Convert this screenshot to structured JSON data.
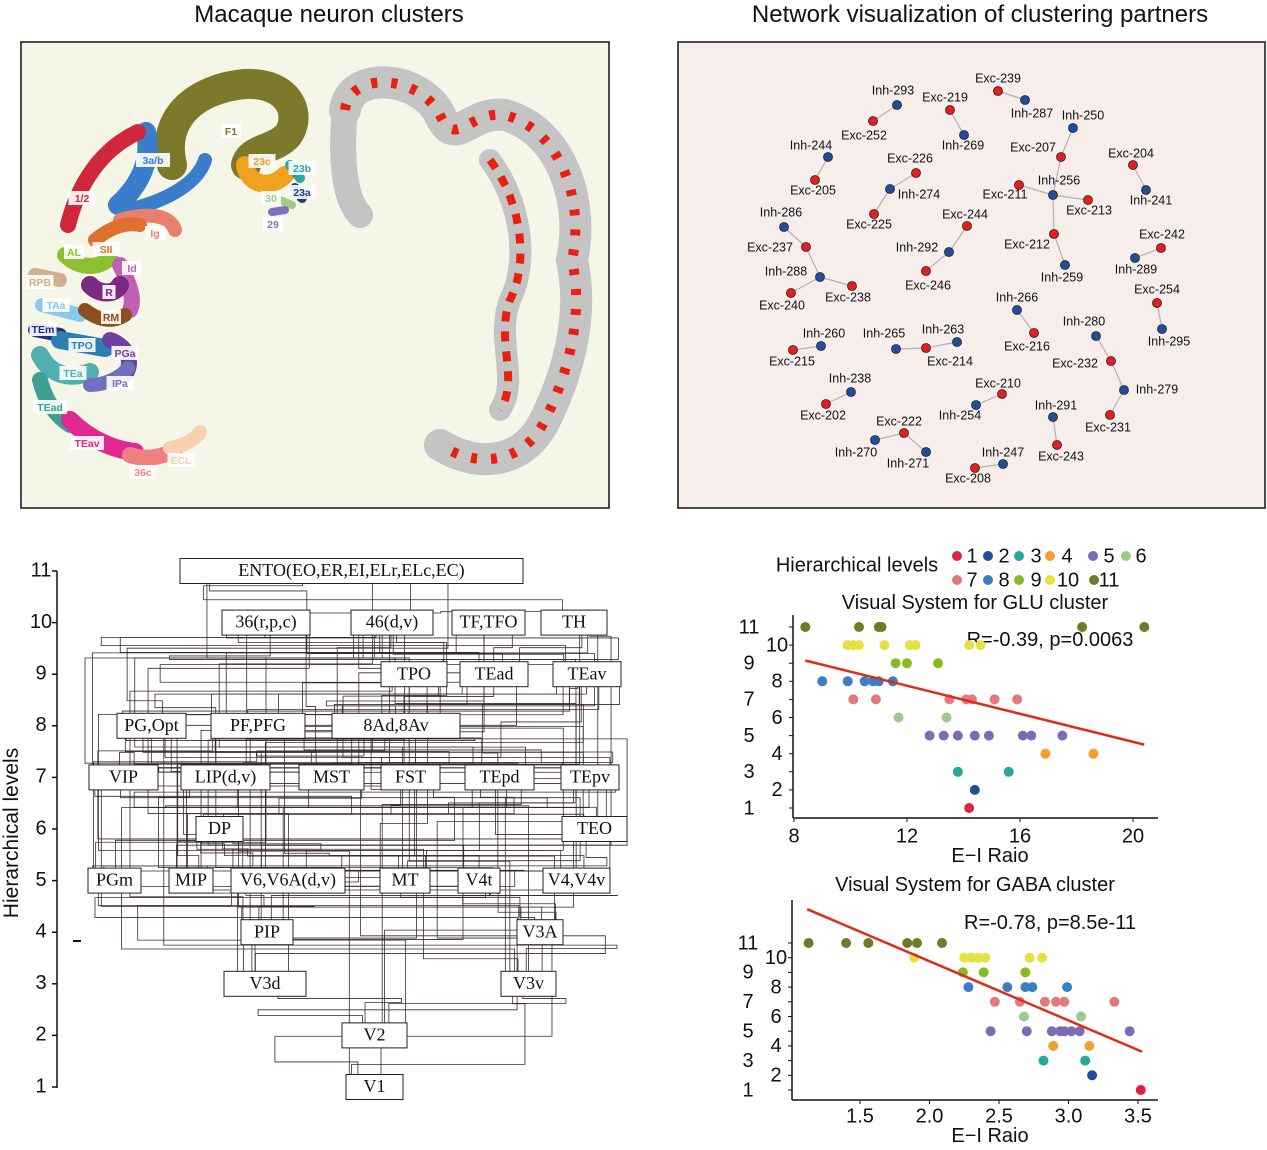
{
  "titles": {
    "brain": "Macaque neuron clusters",
    "network": "Network visualization of clustering partners"
  },
  "brain": {
    "background": "#f5f5e8",
    "hemisphere_color": "#c4c4c4",
    "highlight_color": "#e82010",
    "regions": [
      {
        "label": "F1",
        "color": "#7a7a2a"
      },
      {
        "label": "3a/b",
        "color": "#3a7ecb"
      },
      {
        "label": "1/2",
        "color": "#d0283a"
      },
      {
        "label": "23c",
        "color": "#f2a020"
      },
      {
        "label": "23b",
        "color": "#2aa7a0"
      },
      {
        "label": "23a",
        "color": "#1f3e8a"
      },
      {
        "label": "30",
        "color": "#9ccc88"
      },
      {
        "label": "29",
        "color": "#8070c0"
      },
      {
        "label": "Ig",
        "color": "#e88070"
      },
      {
        "label": "SII",
        "color": "#e07030"
      },
      {
        "label": "AL",
        "color": "#8cc030"
      },
      {
        "label": "Id",
        "color": "#c060b0"
      },
      {
        "label": "RPB",
        "color": "#d0b090"
      },
      {
        "label": "R",
        "color": "#7a2a80"
      },
      {
        "label": "TAa",
        "color": "#8cc8e8"
      },
      {
        "label": "RM",
        "color": "#8a5020"
      },
      {
        "label": "TEm",
        "color": "#203080"
      },
      {
        "label": "TPO",
        "color": "#2a80b0"
      },
      {
        "label": "PGa",
        "color": "#7040a0"
      },
      {
        "label": "TEa",
        "color": "#50b0b0"
      },
      {
        "label": "IPa",
        "color": "#7070c0"
      },
      {
        "label": "TEad",
        "color": "#40a090"
      },
      {
        "label": "TEav",
        "color": "#e02890"
      },
      {
        "label": "36c",
        "color": "#f08080"
      },
      {
        "label": "ECL",
        "color": "#f8d0b0"
      }
    ]
  },
  "network": {
    "background": "#f7eeec",
    "exc_color": "#e3201b",
    "inh_color": "#1f4ea0",
    "nodes": [
      "Exc-239",
      "Inh-287",
      "Inh-293",
      "Exc-252",
      "Exc-219",
      "Inh-269",
      "Inh-250",
      "Exc-207",
      "Inh-244",
      "Exc-205",
      "Exc-226",
      "Inh-274",
      "Exc-225",
      "Exc-204",
      "Inh-241",
      "Exc-211",
      "Inh-256",
      "Exc-213",
      "Exc-212",
      "Inh-259",
      "Inh-286",
      "Exc-237",
      "Inh-288",
      "Exc-238",
      "Exc-240",
      "Exc-244",
      "Inh-292",
      "Exc-246",
      "Exc-242",
      "Inh-289",
      "Exc-254",
      "Inh-295",
      "Inh-266",
      "Exc-216",
      "Inh-280",
      "Exc-232",
      "Inh-279",
      "Exc-231",
      "Inh-260",
      "Exc-215",
      "Inh-265",
      "Exc-214",
      "Inh-263",
      "Inh-238",
      "Exc-202",
      "Exc-210",
      "Inh-254",
      "Inh-291",
      "Exc-243",
      "Exc-222",
      "Inh-270",
      "Inh-271",
      "Inh-247",
      "Exc-208"
    ],
    "edges": [
      [
        "Exc-239",
        "Inh-287"
      ],
      [
        "Inh-293",
        "Exc-252"
      ],
      [
        "Exc-219",
        "Inh-269"
      ],
      [
        "Inh-250",
        "Exc-207"
      ],
      [
        "Exc-207",
        "Inh-256"
      ],
      [
        "Exc-211",
        "Inh-256"
      ],
      [
        "Inh-256",
        "Exc-213"
      ],
      [
        "Inh-256",
        "Exc-212"
      ],
      [
        "Exc-212",
        "Inh-259"
      ],
      [
        "Inh-244",
        "Exc-205"
      ],
      [
        "Exc-226",
        "Inh-274"
      ],
      [
        "Inh-274",
        "Exc-225"
      ],
      [
        "Exc-204",
        "Inh-241"
      ],
      [
        "Inh-286",
        "Exc-237"
      ],
      [
        "Exc-237",
        "Inh-288"
      ],
      [
        "Inh-288",
        "Exc-238"
      ],
      [
        "Inh-288",
        "Exc-240"
      ],
      [
        "Exc-244",
        "Inh-292"
      ],
      [
        "Inh-292",
        "Exc-246"
      ],
      [
        "Exc-242",
        "Inh-289"
      ],
      [
        "Exc-254",
        "Inh-295"
      ],
      [
        "Inh-266",
        "Exc-216"
      ],
      [
        "Inh-280",
        "Exc-232"
      ],
      [
        "Exc-232",
        "Inh-279"
      ],
      [
        "Inh-279",
        "Exc-231"
      ],
      [
        "Inh-260",
        "Exc-215"
      ],
      [
        "Inh-265",
        "Exc-214"
      ],
      [
        "Exc-214",
        "Inh-263"
      ],
      [
        "Inh-238",
        "Exc-202"
      ],
      [
        "Exc-210",
        "Inh-254"
      ],
      [
        "Inh-291",
        "Exc-243"
      ],
      [
        "Exc-222",
        "Inh-270"
      ],
      [
        "Exc-222",
        "Inh-271"
      ],
      [
        "Inh-247",
        "Exc-208"
      ]
    ]
  },
  "hierarchy": {
    "ylabel": "Hierarchical levels",
    "yticks": [
      1,
      2,
      3,
      4,
      5,
      6,
      7,
      8,
      9,
      10,
      11
    ],
    "areas": [
      {
        "label": "ENTO(EO,ER,EI,ELr,ELc,EC)",
        "level": 11
      },
      {
        "label": "36(r,p,c)",
        "level": 10
      },
      {
        "label": "46(d,v)",
        "level": 10
      },
      {
        "label": "TF,TFO",
        "level": 10
      },
      {
        "label": "TH",
        "level": 10
      },
      {
        "label": "TPO",
        "level": 9
      },
      {
        "label": "TEad",
        "level": 9
      },
      {
        "label": "TEav",
        "level": 9
      },
      {
        "label": "PG,Opt",
        "level": 8
      },
      {
        "label": "PF,PFG",
        "level": 8
      },
      {
        "label": "8Ad,8Av",
        "level": 8
      },
      {
        "label": "VIP",
        "level": 7
      },
      {
        "label": "LIP(d,v)",
        "level": 7
      },
      {
        "label": "MST",
        "level": 7
      },
      {
        "label": "FST",
        "level": 7
      },
      {
        "label": "TEpd",
        "level": 7
      },
      {
        "label": "TEpv",
        "level": 7
      },
      {
        "label": "DP",
        "level": 6
      },
      {
        "label": "TEO",
        "level": 6
      },
      {
        "label": "PGm",
        "level": 5
      },
      {
        "label": "MIP",
        "level": 5
      },
      {
        "label": "V6,V6A(d,v)",
        "level": 5
      },
      {
        "label": "MT",
        "level": 5
      },
      {
        "label": "V4t",
        "level": 5
      },
      {
        "label": "V4,V4v",
        "level": 5
      },
      {
        "label": "PIP",
        "level": 4
      },
      {
        "label": "V3A",
        "level": 4
      },
      {
        "label": "V3d",
        "level": 3
      },
      {
        "label": "V3v",
        "level": 3
      },
      {
        "label": "V2",
        "level": 2
      },
      {
        "label": "V1",
        "level": 1
      }
    ]
  },
  "legend": {
    "title": "Hierarchical levels",
    "items": [
      {
        "label": "1",
        "color": "#d7263d"
      },
      {
        "label": "2",
        "color": "#1f4e9c"
      },
      {
        "label": "3",
        "color": "#2aa79b"
      },
      {
        "label": "4",
        "color": "#f0a030"
      },
      {
        "label": "5",
        "color": "#7e6bb5"
      },
      {
        "label": "6",
        "color": "#99cc88"
      },
      {
        "label": "7",
        "color": "#e07b7b"
      },
      {
        "label": "8",
        "color": "#3a80c0"
      },
      {
        "label": "9",
        "color": "#88bb22"
      },
      {
        "label": "10",
        "color": "#e6e040"
      },
      {
        "label": "11",
        "color": "#707a2a"
      }
    ]
  },
  "chart_data": [
    {
      "type": "scatter",
      "title": "Visual System for GLU cluster",
      "xlabel": "E−I Raio",
      "ylabel": "",
      "xlim": [
        8,
        20.8
      ],
      "ylim": [
        1,
        11
      ],
      "xticks": [
        8,
        12,
        16,
        20
      ],
      "yticks": [
        1,
        2,
        3,
        4,
        5,
        6,
        7,
        8,
        9,
        10,
        11
      ],
      "annotation": "R=-0.39, p=0.0063",
      "fit_line": {
        "color": "#e02a1a",
        "from": [
          8.4,
          9.15
        ],
        "to": [
          20.4,
          4.5
        ]
      },
      "points": [
        [
          8.4,
          11
        ],
        [
          10.3,
          11
        ],
        [
          11.0,
          11
        ],
        [
          11.1,
          11
        ],
        [
          18.2,
          11
        ],
        [
          20.4,
          11
        ],
        [
          9.9,
          10
        ],
        [
          10.1,
          10
        ],
        [
          10.3,
          10
        ],
        [
          11.2,
          10
        ],
        [
          12.1,
          10
        ],
        [
          12.3,
          10
        ],
        [
          14.2,
          10
        ],
        [
          14.6,
          10
        ],
        [
          11.6,
          9
        ],
        [
          12.0,
          9
        ],
        [
          13.1,
          9
        ],
        [
          9.0,
          8
        ],
        [
          9.9,
          8
        ],
        [
          10.5,
          8
        ],
        [
          10.8,
          8
        ],
        [
          11.0,
          8
        ],
        [
          11.5,
          8
        ],
        [
          10.1,
          7
        ],
        [
          10.9,
          7
        ],
        [
          13.5,
          7
        ],
        [
          14.1,
          7
        ],
        [
          14.3,
          7
        ],
        [
          15.1,
          7
        ],
        [
          15.9,
          7
        ],
        [
          11.7,
          6
        ],
        [
          13.4,
          6
        ],
        [
          12.8,
          5
        ],
        [
          13.3,
          5
        ],
        [
          13.8,
          5
        ],
        [
          14.4,
          5
        ],
        [
          14.9,
          5
        ],
        [
          16.1,
          5
        ],
        [
          16.4,
          5
        ],
        [
          17.5,
          5
        ],
        [
          16.9,
          4
        ],
        [
          18.6,
          4
        ],
        [
          13.8,
          3
        ],
        [
          15.6,
          3
        ],
        [
          14.4,
          2
        ],
        [
          14.2,
          1
        ]
      ]
    },
    {
      "type": "scatter",
      "title": "Visual System for GABA cluster",
      "xlabel": "E−I Raio",
      "ylabel": "",
      "xlim": [
        1.0,
        3.6
      ],
      "ylim": [
        1,
        11
      ],
      "xticks": [
        1.5,
        2.0,
        2.5,
        3.0,
        3.5
      ],
      "yticks": [
        1,
        2,
        3,
        4,
        5,
        6,
        7,
        8,
        9,
        10,
        11
      ],
      "annotation": "R=-0.78, p=8.5e-11",
      "fit_line": {
        "color": "#e02a1a",
        "from": [
          1.12,
          13.3
        ],
        "to": [
          3.53,
          3.6
        ]
      },
      "points": [
        [
          1.13,
          11
        ],
        [
          1.4,
          11
        ],
        [
          1.56,
          11
        ],
        [
          1.84,
          11
        ],
        [
          1.91,
          11
        ],
        [
          2.09,
          11
        ],
        [
          1.89,
          10
        ],
        [
          2.25,
          10
        ],
        [
          2.3,
          10
        ],
        [
          2.35,
          10
        ],
        [
          2.4,
          10
        ],
        [
          2.72,
          10
        ],
        [
          2.81,
          10
        ],
        [
          2.24,
          9
        ],
        [
          2.39,
          9
        ],
        [
          2.69,
          9
        ],
        [
          2.28,
          8
        ],
        [
          2.56,
          8
        ],
        [
          2.69,
          8
        ],
        [
          2.74,
          8
        ],
        [
          2.99,
          8
        ],
        [
          2.47,
          7
        ],
        [
          2.65,
          7
        ],
        [
          2.83,
          7
        ],
        [
          2.91,
          7
        ],
        [
          2.97,
          7
        ],
        [
          3.33,
          7
        ],
        [
          2.68,
          6
        ],
        [
          3.09,
          6
        ],
        [
          2.44,
          5
        ],
        [
          2.7,
          5
        ],
        [
          2.88,
          5
        ],
        [
          2.94,
          5
        ],
        [
          2.97,
          5
        ],
        [
          3.02,
          5
        ],
        [
          3.08,
          5
        ],
        [
          3.44,
          5
        ],
        [
          2.89,
          4
        ],
        [
          3.15,
          4
        ],
        [
          2.82,
          3
        ],
        [
          3.12,
          3
        ],
        [
          3.17,
          2
        ],
        [
          3.52,
          1
        ]
      ]
    }
  ]
}
